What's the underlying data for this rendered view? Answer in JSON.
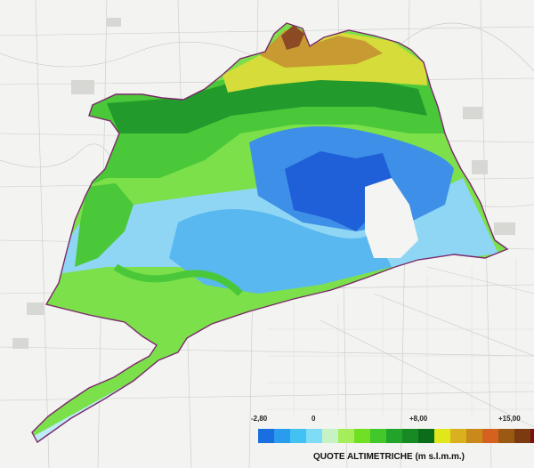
{
  "legend": {
    "title": "QUOTE ALTIMETRICHE (m s.l.m.m.)",
    "tick_labels": [
      "-2,80",
      "0",
      "+8,00",
      "+15,00"
    ],
    "colors": [
      "#1a6fe0",
      "#2a9cee",
      "#41c2f2",
      "#7fdcf6",
      "#c7f2c6",
      "#a4ee5a",
      "#6fe024",
      "#42c82a",
      "#22a42a",
      "#178a24",
      "#0b6d1a",
      "#e0e81c",
      "#d9b01e",
      "#c98a1a",
      "#d4621e",
      "#9a5a14",
      "#7c3a10",
      "#7a1010"
    ]
  },
  "map": {
    "elevation_colors": {
      "deep_depression": "#1f5fd8",
      "depression": "#3d8fe8",
      "below_sea": "#5ab8f0",
      "near_sea": "#8fd6f4",
      "sea_level": "#bfeaf8",
      "low_green": "#7be04a",
      "mid_green": "#4ac83a",
      "high_green": "#239a2c",
      "upland_yellow": "#d6dc3a",
      "upland_orange": "#c89a32",
      "upland_red": "#8c4a24"
    }
  }
}
